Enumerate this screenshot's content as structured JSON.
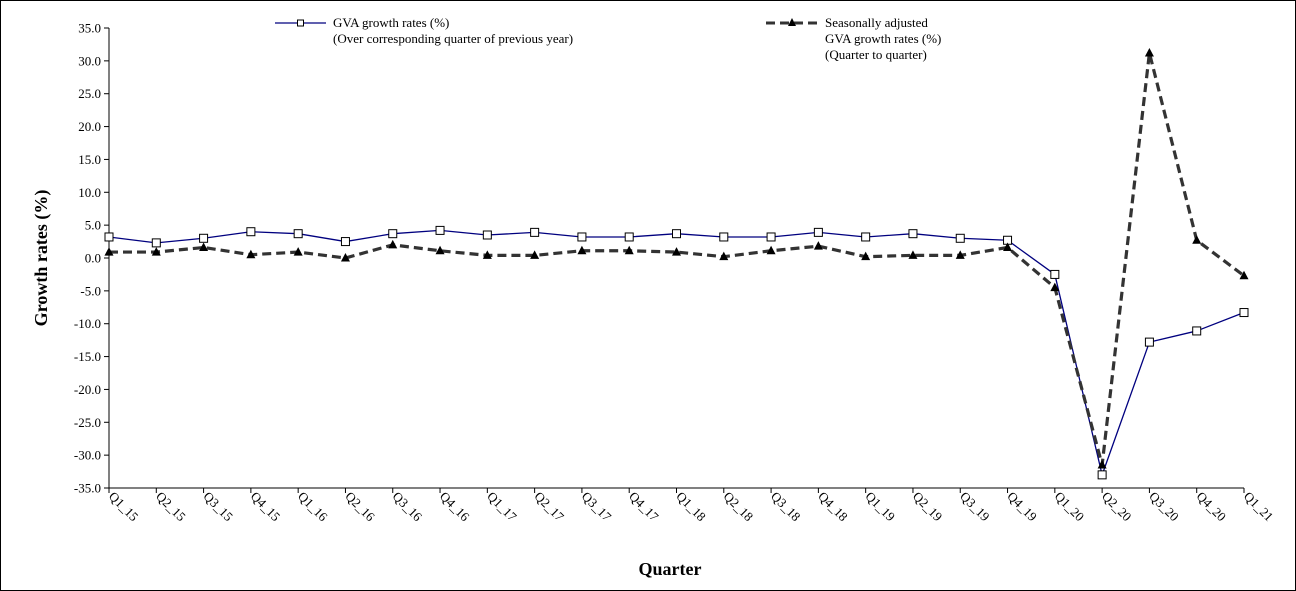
{
  "chart_data": {
    "type": "line",
    "xlabel": "Quarter",
    "ylabel": "Growth rates (%)",
    "ylim": [
      -35,
      35
    ],
    "ytick_step": 5,
    "grid": false,
    "legend_position": "top",
    "categories": [
      "Q1_15",
      "Q2_15",
      "Q3_15",
      "Q4_15",
      "Q1_16",
      "Q2_16",
      "Q3_16",
      "Q4_16",
      "Q1_17",
      "Q2_17",
      "Q3_17",
      "Q4_17",
      "Q1_18",
      "Q2_18",
      "Q3_18",
      "Q4_18",
      "Q1_19",
      "Q2_19",
      "Q3_19",
      "Q4_19",
      "Q1_20",
      "Q2_20",
      "Q3_20",
      "Q4_20",
      "Q1_21"
    ],
    "series": [
      {
        "name": "GVA growth rates (%)",
        "name_line2": "(Over corresponding quarter of previous year)",
        "color": "#00007f",
        "marker": "square",
        "style": "solid",
        "values": [
          3.2,
          2.3,
          3.0,
          4.0,
          3.7,
          2.5,
          3.7,
          4.2,
          3.5,
          3.9,
          3.2,
          3.2,
          3.7,
          3.2,
          3.2,
          3.9,
          3.2,
          3.7,
          3.0,
          2.7,
          -2.5,
          -33.0,
          -12.8,
          -11.1,
          -8.3
        ]
      },
      {
        "name": "Seasonally adjusted",
        "name_line2": "GVA growth rates (%)",
        "name_line3": "(Quarter to quarter)",
        "color": "#333333",
        "marker": "triangle",
        "style": "dashed",
        "values": [
          0.9,
          0.9,
          1.6,
          0.5,
          0.9,
          0.0,
          2.0,
          1.1,
          0.4,
          0.4,
          1.1,
          1.1,
          0.9,
          0.2,
          1.1,
          1.8,
          0.2,
          0.4,
          0.4,
          1.6,
          -4.5,
          -31.5,
          31.2,
          2.7,
          -2.7
        ]
      }
    ]
  }
}
